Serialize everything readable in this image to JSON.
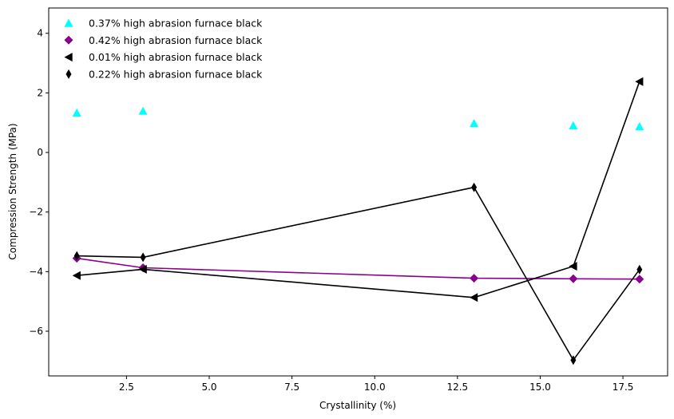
{
  "chart_data": {
    "type": "line",
    "xlabel": "Crystallinity (%)",
    "ylabel": "Compression Strength (MPa)",
    "xlim": [
      0.15,
      18.85
    ],
    "ylim": [
      -7.5,
      4.85
    ],
    "xticks": [
      2.5,
      5.0,
      7.5,
      10.0,
      12.5,
      15.0,
      17.5
    ],
    "xtick_labels": [
      "2.5",
      "5.0",
      "7.5",
      "10.0",
      "12.5",
      "15.0",
      "17.5"
    ],
    "yticks": [
      -6,
      -4,
      -2,
      0,
      2,
      4
    ],
    "ytick_labels": [
      "−6",
      "−4",
      "−2",
      "0",
      "2",
      "4"
    ],
    "grid": false,
    "legend_position": "top-left",
    "series": [
      {
        "name": "0.37% high abrasion furnace black",
        "style": "scatter",
        "marker": "triangle-up",
        "color": "#00ffff",
        "x": [
          1,
          3,
          13,
          16,
          18
        ],
        "y": [
          1.33,
          1.39,
          0.98,
          0.9,
          0.87
        ]
      },
      {
        "name": "0.42% high abrasion furnace black",
        "style": "line",
        "marker": "diamond",
        "color": "#8b008b",
        "x": [
          1,
          3,
          13,
          16,
          18
        ],
        "y": [
          -3.55,
          -3.87,
          -4.22,
          -4.24,
          -4.25
        ]
      },
      {
        "name": "0.01% high abrasion furnace black",
        "style": "line",
        "marker": "triangle-left",
        "color": "#000000",
        "x": [
          1,
          3,
          13,
          16,
          18
        ],
        "y": [
          -4.13,
          -3.92,
          -4.87,
          -3.82,
          2.38
        ]
      },
      {
        "name": "0.22% high abrasion furnace black",
        "style": "line",
        "marker": "thin-diamond",
        "color": "#000000",
        "x": [
          1,
          3,
          13,
          16,
          18
        ],
        "y": [
          -3.47,
          -3.52,
          -1.17,
          -6.97,
          -3.93
        ]
      }
    ]
  }
}
